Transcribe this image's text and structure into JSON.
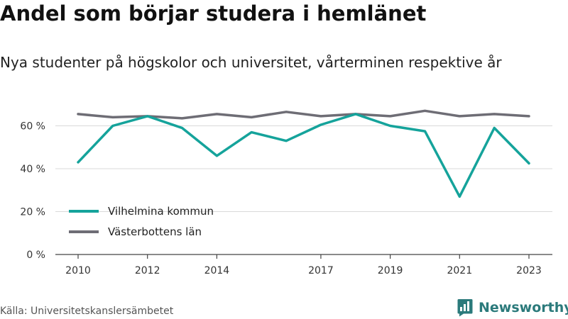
{
  "header": {
    "title": "Andel som börjar studera i hemlänet",
    "subtitle": "Nya studenter på högskolor och universitet, vårterminen respektive år"
  },
  "footer": {
    "source": "Källa: Universitetskanslersämbetet",
    "brand": "Newsworthy",
    "brand_icon": "newsworthy-logo-icon",
    "brand_color": "#2b7a7b"
  },
  "chart_data": {
    "type": "line",
    "title": "Andel som börjar studera i hemlänet",
    "subtitle": "Nya studenter på högskolor och universitet, vårterminen respektive år",
    "xlabel": "",
    "ylabel": "",
    "x": [
      2010,
      2011,
      2012,
      2013,
      2014,
      2015,
      2016,
      2017,
      2018,
      2019,
      2020,
      2021,
      2022,
      2023
    ],
    "x_ticks": [
      "2010",
      "2012",
      "2014",
      "2017",
      "2019",
      "2021",
      "2023"
    ],
    "y_ticks": [
      "0 %",
      "20 %",
      "40 %",
      "60 %"
    ],
    "y_tick_values": [
      0,
      20,
      40,
      60
    ],
    "ylim": [
      0,
      70
    ],
    "grid": "horizontal",
    "legend_position": "bottom-left",
    "series": [
      {
        "name": "Vilhelmina kommun",
        "color": "#15a39b",
        "values": [
          43,
          60,
          64.5,
          59,
          46,
          57,
          53,
          60.5,
          65.5,
          60,
          57.5,
          27,
          59,
          42.5
        ]
      },
      {
        "name": "Västerbottens län",
        "color": "#6e6d75",
        "values": [
          65.5,
          64,
          64.5,
          63.5,
          65.5,
          64,
          66.5,
          64.5,
          65.5,
          64.5,
          67,
          64.5,
          65.5,
          64.5
        ]
      }
    ]
  }
}
